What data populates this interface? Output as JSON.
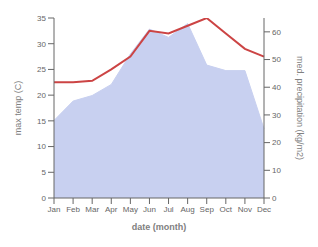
{
  "chart_data": {
    "type": "line",
    "categories": [
      "Jan",
      "Feb",
      "Mar",
      "Apr",
      "May",
      "Jun",
      "Jul",
      "Aug",
      "Sep",
      "Oct",
      "Nov",
      "Dec"
    ],
    "series": [
      {
        "type": "area",
        "axis": "y2",
        "color": "#c8d0f0",
        "values": [
          28,
          35,
          37,
          41,
          52,
          61,
          58,
          63,
          48,
          46,
          46,
          25
        ]
      },
      {
        "type": "line",
        "axis": "y",
        "color": "#cc4444",
        "values": [
          22.5,
          22.5,
          22.8,
          25.0,
          27.5,
          32.5,
          32.0,
          33.5,
          35.0,
          32.0,
          29.0,
          27.5
        ]
      }
    ],
    "xlabel": "date (month)",
    "ylabel": "max temp (C)",
    "y2label": "med. precipitation (kg/m2)",
    "ylim": [
      0,
      35
    ],
    "yticks": [
      0,
      5,
      10,
      15,
      20,
      25,
      30,
      35
    ],
    "y2lim": [
      0,
      65
    ],
    "y2ticks": [
      0,
      10,
      20,
      30,
      40,
      50,
      60
    ],
    "grid": false
  }
}
